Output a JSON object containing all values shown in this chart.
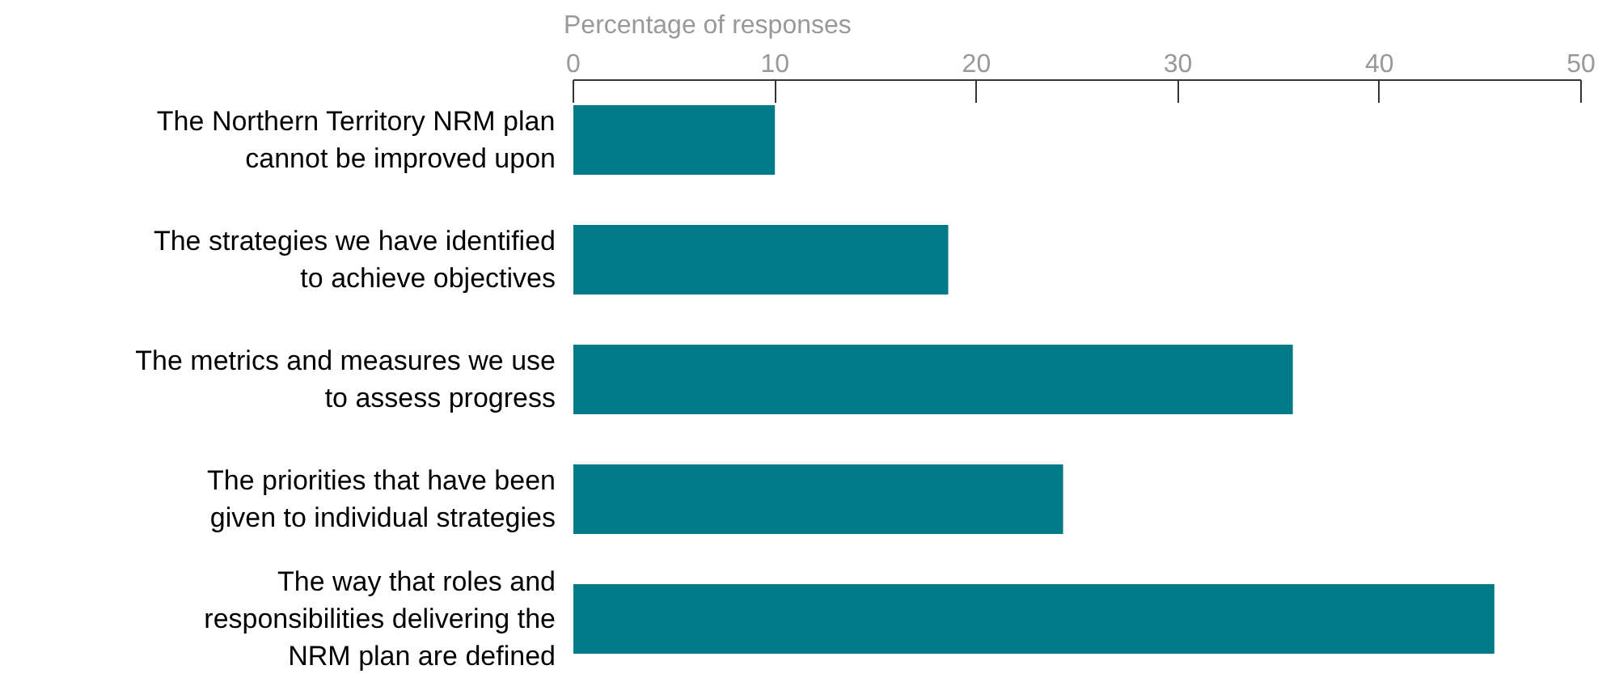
{
  "chart_data": {
    "type": "bar",
    "orientation": "horizontal",
    "xlabel": "Percentage of responses",
    "categories": [
      "The Northern Territory NRM plan cannot be improved upon",
      "The strategies we have identified to achieve objectives",
      "The metrics and measures we use to assess progress",
      "The priorities that have been given to individual strategies",
      "The way that roles and responsibilities delivering the NRM plan are defined"
    ],
    "values": [
      10.0,
      18.6,
      35.7,
      24.3,
      45.7
    ],
    "color": "#007a87",
    "xlim": [
      0,
      50
    ],
    "xticks": [
      0,
      10,
      20,
      30,
      40,
      50
    ],
    "grid": false
  }
}
